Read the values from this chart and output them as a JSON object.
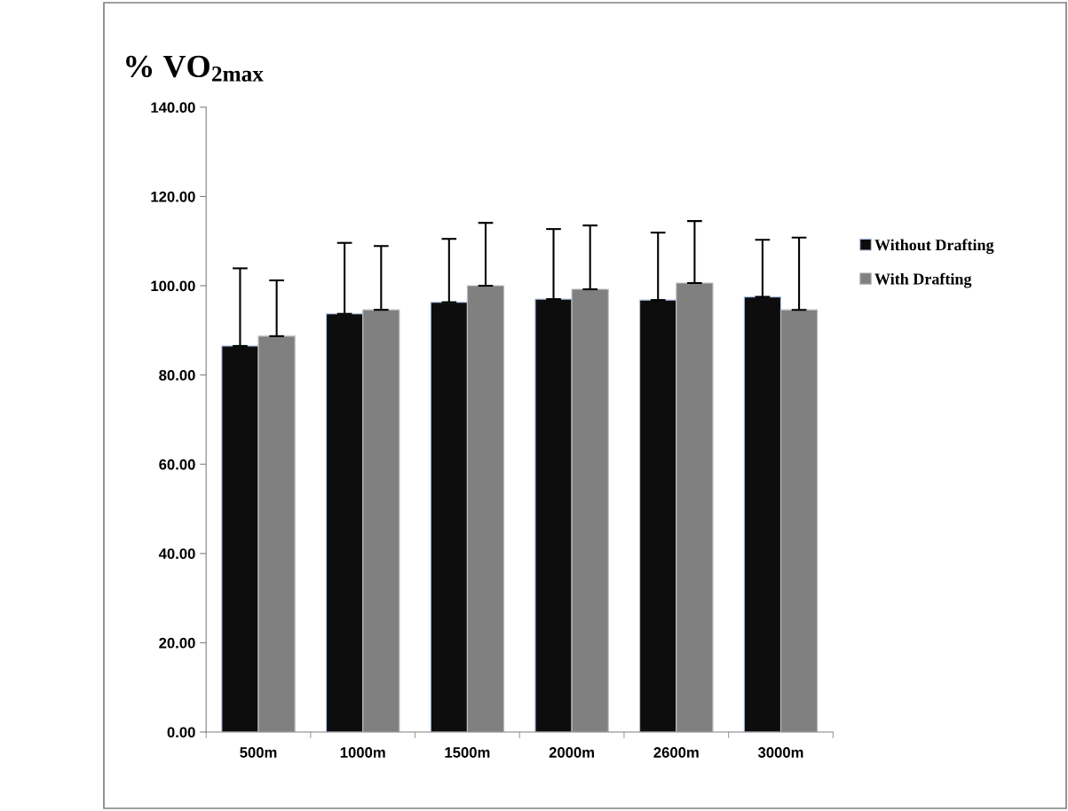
{
  "chart_data": {
    "type": "bar",
    "title": "% VO$_{2max}$",
    "categories": [
      "500m",
      "1000m",
      "1500m",
      "2000m",
      "2600m",
      "3000m"
    ],
    "series": [
      {
        "name": "Without Drafting",
        "color": "#0d0d0d",
        "values": [
          86.5,
          93.7,
          96.3,
          97.0,
          96.8,
          97.5
        ],
        "errors": [
          [
            86.5,
            103.9
          ],
          [
            93.7,
            109.6
          ],
          [
            96.3,
            110.5
          ],
          [
            97.0,
            112.7
          ],
          [
            96.8,
            111.9
          ],
          [
            97.5,
            110.3
          ]
        ]
      },
      {
        "name": "With Drafting",
        "color": "#808080",
        "values": [
          88.7,
          94.6,
          100.0,
          99.2,
          100.6,
          94.6
        ],
        "errors": [
          [
            88.7,
            101.2
          ],
          [
            94.6,
            108.9
          ],
          [
            100.0,
            114.1
          ],
          [
            99.2,
            113.5
          ],
          [
            100.6,
            114.5
          ],
          [
            94.6,
            110.8
          ]
        ]
      }
    ],
    "ylim": [
      0,
      140
    ],
    "yticks": [
      {
        "value": 0,
        "label": "0.00"
      },
      {
        "value": 20,
        "label": "20.00"
      },
      {
        "value": 40,
        "label": "40.00"
      },
      {
        "value": 60,
        "label": "60.00"
      },
      {
        "value": 80,
        "label": "80.00"
      },
      {
        "value": 100,
        "label": "100.00"
      },
      {
        "value": 120,
        "label": "120.00"
      },
      {
        "value": 140,
        "label": "140.00"
      }
    ],
    "grid": false,
    "legend": "right"
  }
}
